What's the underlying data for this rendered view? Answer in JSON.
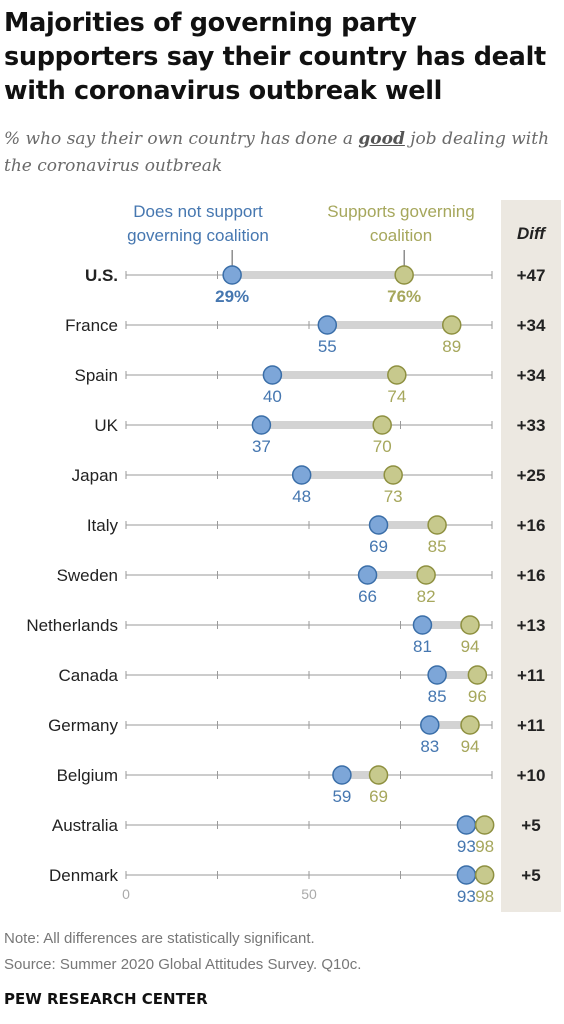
{
  "title": "Majorities of governing party supporters say their country has dealt with coronavirus outbreak well",
  "subtitle_pre": "% who say their own country has done a ",
  "subtitle_em": "good",
  "subtitle_post": " job dealing with the coronavirus outbreak",
  "legend": {
    "not_support": "Does not support governing coalition",
    "support": "Supports governing coalition"
  },
  "diff_header": "Diff",
  "colors": {
    "not_support": "#7da6d8",
    "not_support_stroke": "#3a6ea8",
    "not_support_text": "#4677b0",
    "support": "#c7c98d",
    "support_stroke": "#8e9040",
    "support_text": "#a6a75c",
    "connector": "#d3d3d3",
    "axis_line": "#9a9a9a",
    "diff_band": "#ece8e1"
  },
  "chart_data": {
    "type": "dot-plot",
    "xlim": [
      0,
      100
    ],
    "x_ticks": [
      "0",
      "50"
    ],
    "categories": [
      "U.S.",
      "France",
      "Spain",
      "UK",
      "Japan",
      "Italy",
      "Sweden",
      "Netherlands",
      "Canada",
      "Germany",
      "Belgium",
      "Australia",
      "Denmark"
    ],
    "series": [
      {
        "name": "Does not support governing coalition",
        "values": [
          29,
          55,
          40,
          37,
          48,
          69,
          66,
          81,
          85,
          83,
          59,
          93,
          93
        ]
      },
      {
        "name": "Supports governing coalition",
        "values": [
          76,
          89,
          74,
          70,
          73,
          85,
          82,
          94,
          96,
          94,
          69,
          98,
          98
        ]
      }
    ],
    "value_labels_first": [
      "29%",
      "76%"
    ],
    "diff": [
      "+47",
      "+34",
      "+34",
      "+33",
      "+25",
      "+16",
      "+16",
      "+13",
      "+11",
      "+11",
      "+10",
      "+5",
      "+5"
    ]
  },
  "notes": {
    "note": "Note: All differences are statistically significant.",
    "source": "Source: Summer 2020 Global Attitudes Survey. Q10c."
  },
  "brand": "PEW RESEARCH CENTER"
}
